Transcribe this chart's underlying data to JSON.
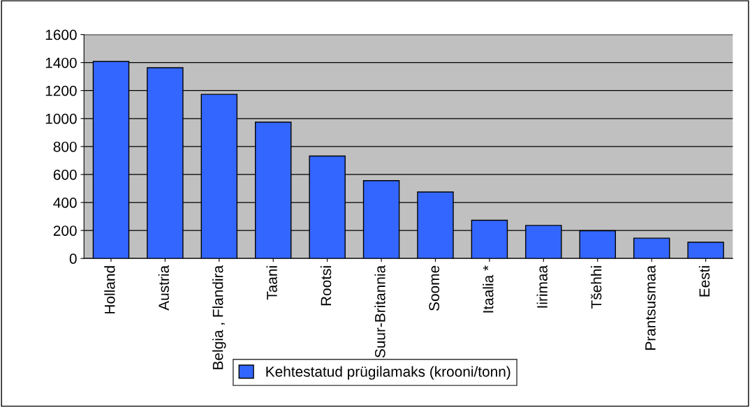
{
  "chart_data": {
    "type": "bar",
    "categories": [
      "Holland",
      "Austria",
      "Belgia , Flandira",
      "Taani",
      "Rootsi",
      "Suur-Britannia",
      "Soome",
      "Itaalia *",
      "Iirimaa",
      "Tšehhi",
      "Prantsusmaa",
      "Eesti"
    ],
    "series": [
      {
        "name": "Kehtestatud prügilamaks (krooni/tonn)",
        "color": "#3366ff",
        "values": [
          1408,
          1363,
          1173,
          974,
          732,
          556,
          475,
          273,
          236,
          198,
          145,
          116
        ]
      }
    ],
    "ylim": [
      0,
      1600
    ],
    "yticks": [
      0,
      200,
      400,
      600,
      800,
      1000,
      1200,
      1400,
      1600
    ],
    "grid": "y",
    "legend": "bottom"
  }
}
